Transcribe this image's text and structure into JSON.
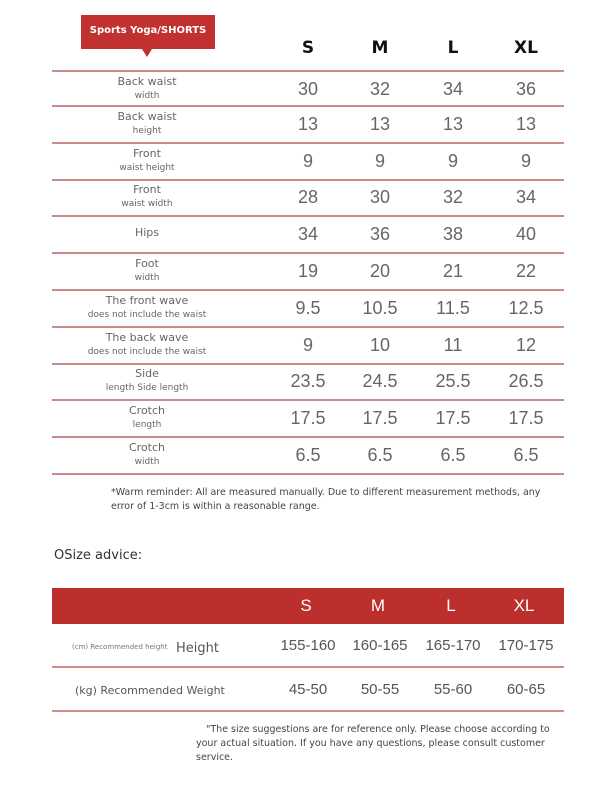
{
  "tag": "Sports Yoga/SHORTS",
  "sizes": [
    "S",
    "M",
    "L",
    "XL"
  ],
  "rows": [
    {
      "l1": "Back waist",
      "l2": "width",
      "v": [
        "30",
        "32",
        "34",
        "36"
      ]
    },
    {
      "l1": "Back waist",
      "l2": "height",
      "v": [
        "13",
        "13",
        "13",
        "13"
      ]
    },
    {
      "l1": "Front",
      "l2": "waist height",
      "v": [
        "9",
        "9",
        "9",
        "9"
      ]
    },
    {
      "l1": "Front",
      "l2": "waist width",
      "v": [
        "28",
        "30",
        "32",
        "34"
      ]
    },
    {
      "l1": "Hips",
      "l2": "",
      "v": [
        "34",
        "36",
        "38",
        "40"
      ]
    },
    {
      "l1": "Foot",
      "l2": "width",
      "v": [
        "19",
        "20",
        "21",
        "22"
      ]
    },
    {
      "l1": "The front wave",
      "l2": "does not include the waist",
      "v": [
        "9.5",
        "10.5",
        "11.5",
        "12.5"
      ]
    },
    {
      "l1": "The back wave",
      "l2": "does not include the waist",
      "v": [
        "9",
        "10",
        "11",
        "12"
      ]
    },
    {
      "l1": "Side",
      "l2": "length Side length",
      "v": [
        "23.5",
        "24.5",
        "25.5",
        "26.5"
      ]
    },
    {
      "l1": "Crotch",
      "l2": "length",
      "v": [
        "17.5",
        "17.5",
        "17.5",
        "17.5"
      ]
    },
    {
      "l1": "Crotch",
      "l2": "width",
      "v": [
        "6.5",
        "6.5",
        "6.5",
        "6.5"
      ]
    }
  ],
  "reminder": "*Warm reminder: All are measured manually. Due to different measurement methods, any error of 1-3cm is within a reasonable range.",
  "advice_title": "OSize advice:",
  "advice": {
    "height_small": "(cm) Recommended height",
    "height_label": "Height",
    "height": [
      "155-160",
      "160-165",
      "165-170",
      "170-175"
    ],
    "weight_label": "(kg) Recommended Weight",
    "weight": [
      "45-50",
      "50-55",
      "55-60",
      "60-65"
    ]
  },
  "footnote": "\"The size suggestions are for reference only. Please choose according to your actual situation. If you have any questions, please consult customer service."
}
